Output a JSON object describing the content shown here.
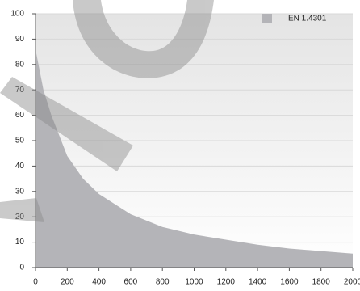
{
  "chart_data": {
    "type": "area",
    "x": [
      0,
      50,
      100,
      200,
      300,
      400,
      500,
      600,
      800,
      1000,
      1200,
      1400,
      1600,
      1800,
      2000
    ],
    "series": [
      {
        "name": "EN 1.4301",
        "color": "#b4b4b8",
        "values": [
          86,
          70,
          60,
          44,
          35,
          29,
          25,
          21,
          16,
          13,
          11,
          9,
          7.5,
          6.5,
          5.5
        ]
      }
    ],
    "xlim": [
      0,
      2000
    ],
    "xticks": [
      0,
      200,
      400,
      600,
      800,
      1000,
      1200,
      1400,
      1600,
      1800,
      2000
    ],
    "ylim": [
      0,
      100
    ],
    "yticks": [
      0,
      10,
      20,
      30,
      40,
      50,
      60,
      70,
      80,
      90,
      100
    ],
    "grid": true,
    "legend": "top-right"
  }
}
